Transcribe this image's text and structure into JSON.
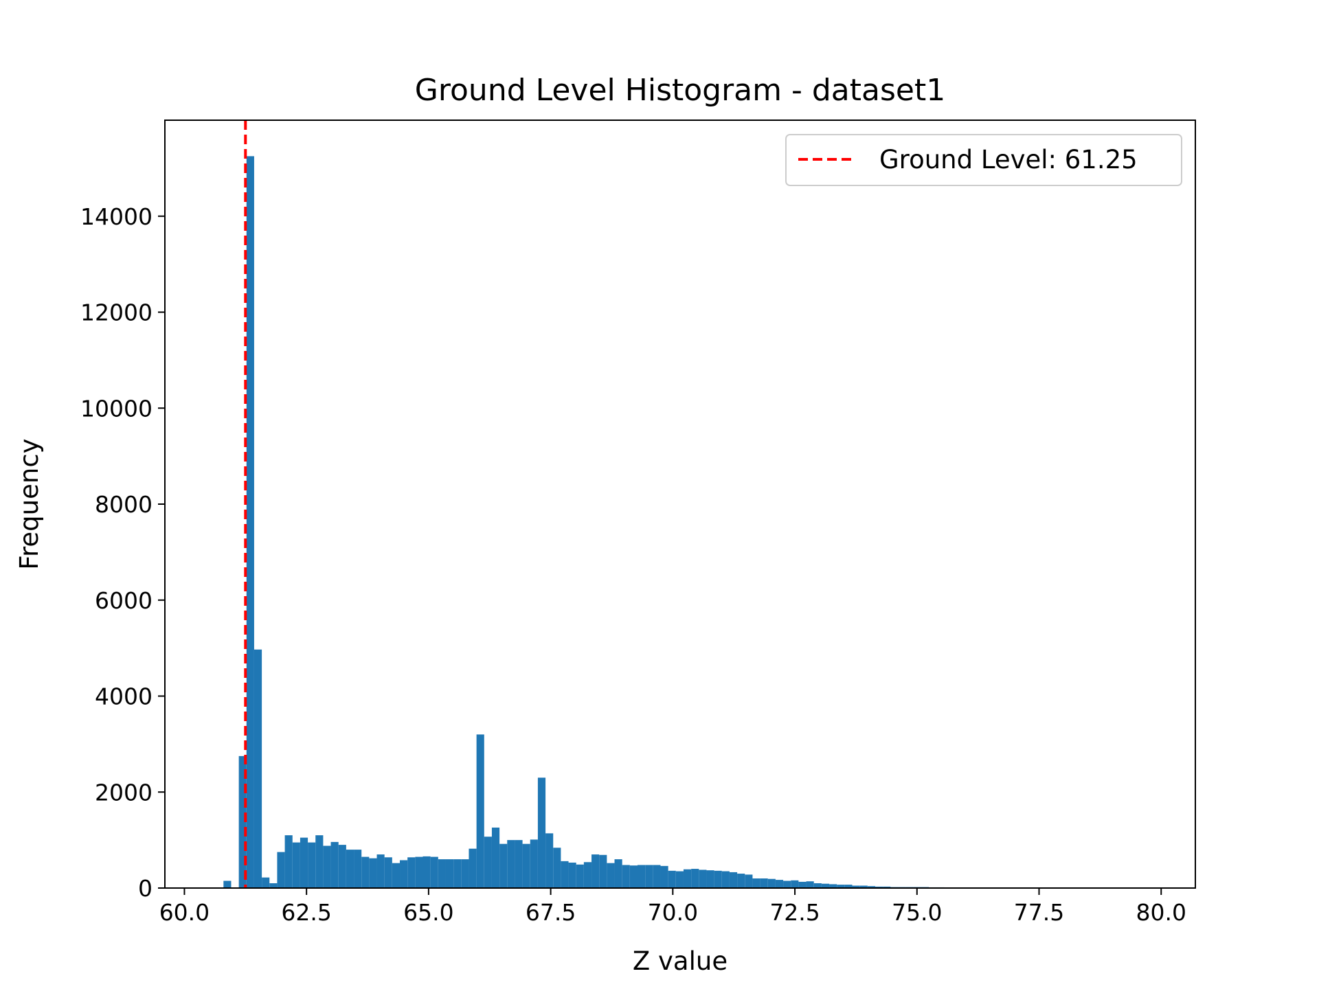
{
  "chart_data": {
    "type": "bar",
    "title": "Ground Level Histogram - dataset1",
    "xlabel": "Z value",
    "ylabel": "Frequency",
    "xlim": [
      59.6,
      80.7
    ],
    "ylim": [
      0,
      16000
    ],
    "x_ticks": [
      "60.0",
      "62.5",
      "65.0",
      "67.5",
      "70.0",
      "72.5",
      "75.0",
      "77.5",
      "80.0"
    ],
    "y_ticks": [
      "0",
      "2000",
      "4000",
      "6000",
      "8000",
      "10000",
      "12000",
      "14000"
    ],
    "bin_start": 60.8,
    "bin_width": 0.157,
    "bar_color": "#1f77b4",
    "counts": [
      150,
      0,
      2750,
      15250,
      4970,
      220,
      100,
      750,
      1100,
      950,
      1050,
      950,
      1100,
      880,
      960,
      900,
      800,
      800,
      650,
      620,
      700,
      640,
      520,
      580,
      640,
      650,
      660,
      650,
      600,
      600,
      600,
      600,
      820,
      3200,
      1070,
      1260,
      920,
      1000,
      1000,
      920,
      1010,
      2300,
      1140,
      840,
      560,
      530,
      490,
      540,
      700,
      690,
      520,
      600,
      480,
      470,
      480,
      480,
      480,
      460,
      360,
      350,
      390,
      400,
      380,
      370,
      360,
      350,
      330,
      300,
      280,
      200,
      200,
      190,
      170,
      150,
      160,
      130,
      140,
      100,
      90,
      80,
      70,
      70,
      50,
      50,
      40,
      30,
      30,
      20,
      20,
      20,
      20,
      20,
      15,
      15,
      10
    ],
    "ground_level": {
      "value": 61.25,
      "label": "Ground Level: 61.25",
      "color": "#ff0000",
      "style": "dashed"
    },
    "legend": {
      "placement": "top-right",
      "entries": [
        "Ground Level: 61.25"
      ]
    },
    "grid": false
  }
}
